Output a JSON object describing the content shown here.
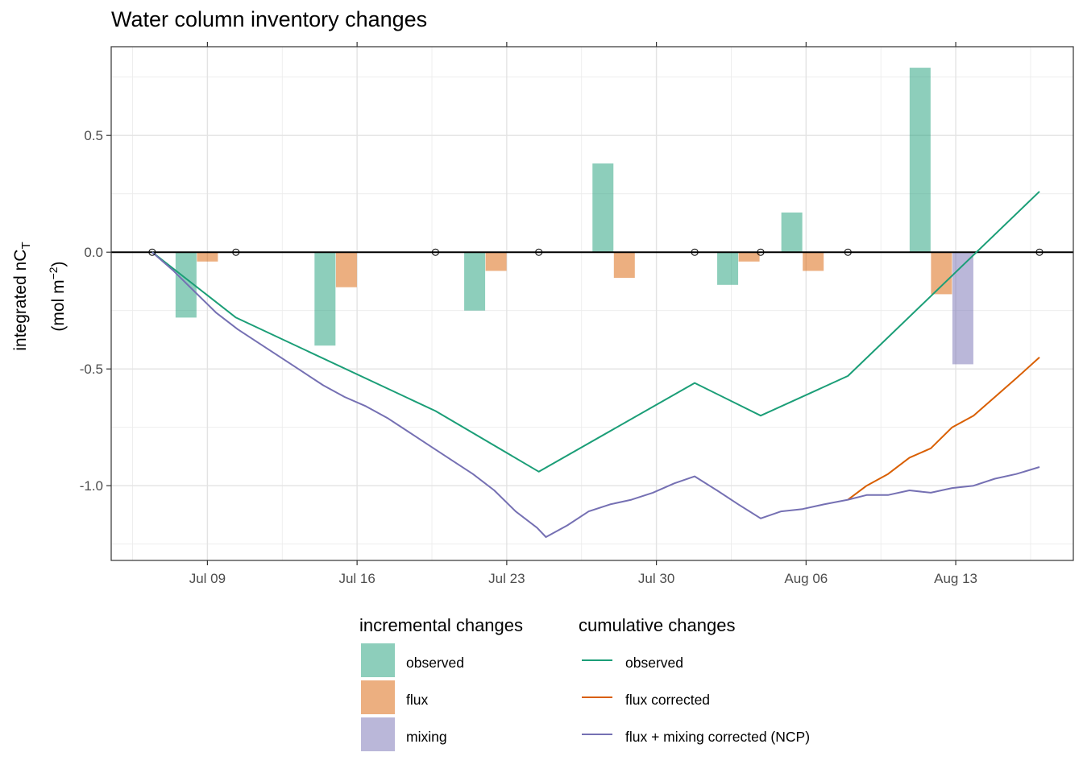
{
  "chart_data": {
    "type": "bar+line",
    "title": "Water column inventory changes",
    "ylabel": {
      "line1": "integrated nC",
      "line1_sub": "T",
      "line2_pre": "(mol m",
      "line2_sup": "−2",
      "line2_post": ")"
    },
    "xlabel": "",
    "x_axis": {
      "type": "date",
      "year": 2000,
      "ticks": [
        {
          "date": "07-09",
          "label": "Jul 09"
        },
        {
          "date": "07-16",
          "label": "Jul 16"
        },
        {
          "date": "07-23",
          "label": "Jul 23"
        },
        {
          "date": "07-30",
          "label": "Jul 30"
        },
        {
          "date": "08-06",
          "label": "Aug 06"
        },
        {
          "date": "08-13",
          "label": "Aug 13"
        }
      ],
      "xlim": [
        "07-04 12:00",
        "08-18 12:00"
      ]
    },
    "y_axis": {
      "ticks": [
        {
          "value": 0.5,
          "label": "0.5"
        },
        {
          "value": 0.0,
          "label": "0.0"
        },
        {
          "value": -0.5,
          "label": "-0.5"
        },
        {
          "value": -1.0,
          "label": "-1.0"
        }
      ],
      "ylim": [
        -1.32,
        0.88
      ]
    },
    "grid": true,
    "zero_line": true,
    "profile_dates": [
      "07-06 10:00",
      "07-10 08:00",
      "07-19 16:00",
      "07-24 12:00",
      "07-31 19:00",
      "08-03 21:00",
      "08-07 23:00",
      "08-16 22:00"
    ],
    "incremental_changes": {
      "legend_title": "incremental changes",
      "series": [
        {
          "key": "observed",
          "name": "observed",
          "color": "#1b9e77",
          "bars": [
            {
              "date": "07-08",
              "value": -0.28
            },
            {
              "date": "07-14 12:00",
              "value": -0.4
            },
            {
              "date": "07-21 12:00",
              "value": -0.25
            },
            {
              "date": "07-27 12:00",
              "value": 0.38
            },
            {
              "date": "08-02 08:00",
              "value": -0.14
            },
            {
              "date": "08-05 08:00",
              "value": 0.17
            },
            {
              "date": "08-11 08:00",
              "value": 0.79
            }
          ]
        },
        {
          "key": "flux",
          "name": "flux",
          "color": "#d95f02",
          "bars": [
            {
              "date": "07-09",
              "value": -0.04
            },
            {
              "date": "07-15 12:00",
              "value": -0.15
            },
            {
              "date": "07-22 12:00",
              "value": -0.08
            },
            {
              "date": "07-28 12:00",
              "value": -0.11
            },
            {
              "date": "08-03 08:00",
              "value": -0.04
            },
            {
              "date": "08-06 08:00",
              "value": -0.08
            },
            {
              "date": "08-12 08:00",
              "value": -0.18
            }
          ]
        },
        {
          "key": "mixing",
          "name": "mixing",
          "color": "#7570b3",
          "bars": [
            {
              "date": "08-13 08:00",
              "value": -0.48
            }
          ]
        }
      ]
    },
    "cumulative_changes": {
      "legend_title": "cumulative changes",
      "series": [
        {
          "key": "observed",
          "name": "observed",
          "color": "#1b9e77",
          "points": [
            [
              "07-06 10:00",
              0.0
            ],
            [
              "07-10 08:00",
              -0.28
            ],
            [
              "07-19 16:00",
              -0.68
            ],
            [
              "07-24 12:00",
              -0.94
            ],
            [
              "07-31 19:00",
              -0.56
            ],
            [
              "08-03 21:00",
              -0.7
            ],
            [
              "08-07 23:00",
              -0.53
            ],
            [
              "08-16 22:00",
              0.26
            ]
          ]
        },
        {
          "key": "flux_corrected",
          "name": "flux corrected",
          "color": "#d95f02",
          "points": [
            [
              "08-07 23:00",
              -1.06
            ],
            [
              "08-08 20:00",
              -1.0
            ],
            [
              "08-09 20:00",
              -0.95
            ],
            [
              "08-10 20:00",
              -0.88
            ],
            [
              "08-11 20:00",
              -0.84
            ],
            [
              "08-12 20:00",
              -0.75
            ],
            [
              "08-13 20:00",
              -0.7
            ],
            [
              "08-14 20:00",
              -0.62
            ],
            [
              "08-15 20:00",
              -0.54
            ],
            [
              "08-16 22:00",
              -0.45
            ]
          ]
        },
        {
          "key": "ncp",
          "name": "flux + mixing corrected (NCP)",
          "color": "#7570b3",
          "points": [
            [
              "07-06 10:00",
              0.0
            ],
            [
              "07-07 10:00",
              -0.08
            ],
            [
              "07-08 10:00",
              -0.17
            ],
            [
              "07-09 10:00",
              -0.26
            ],
            [
              "07-10 10:00",
              -0.33
            ],
            [
              "07-11 10:00",
              -0.39
            ],
            [
              "07-12 10:00",
              -0.45
            ],
            [
              "07-13 10:00",
              -0.51
            ],
            [
              "07-14 10:00",
              -0.57
            ],
            [
              "07-15 10:00",
              -0.62
            ],
            [
              "07-16 10:00",
              -0.66
            ],
            [
              "07-17 10:00",
              -0.71
            ],
            [
              "07-18 10:00",
              -0.77
            ],
            [
              "07-19 10:00",
              -0.83
            ],
            [
              "07-20 10:00",
              -0.89
            ],
            [
              "07-21 10:00",
              -0.95
            ],
            [
              "07-22 10:00",
              -1.02
            ],
            [
              "07-23 10:00",
              -1.11
            ],
            [
              "07-24 10:00",
              -1.18
            ],
            [
              "07-24 20:00",
              -1.22
            ],
            [
              "07-25 20:00",
              -1.17
            ],
            [
              "07-26 20:00",
              -1.11
            ],
            [
              "07-27 20:00",
              -1.08
            ],
            [
              "07-28 20:00",
              -1.06
            ],
            [
              "07-29 20:00",
              -1.03
            ],
            [
              "07-30 20:00",
              -0.99
            ],
            [
              "07-31 19:00",
              -0.96
            ],
            [
              "08-01 20:00",
              -1.02
            ],
            [
              "08-02 20:00",
              -1.08
            ],
            [
              "08-03 21:00",
              -1.14
            ],
            [
              "08-04 20:00",
              -1.11
            ],
            [
              "08-05 20:00",
              -1.1
            ],
            [
              "08-06 20:00",
              -1.08
            ],
            [
              "08-07 23:00",
              -1.06
            ],
            [
              "08-08 20:00",
              -1.04
            ],
            [
              "08-09 20:00",
              -1.04
            ],
            [
              "08-10 20:00",
              -1.02
            ],
            [
              "08-11 20:00",
              -1.03
            ],
            [
              "08-12 20:00",
              -1.01
            ],
            [
              "08-13 20:00",
              -1.0
            ],
            [
              "08-14 20:00",
              -0.97
            ],
            [
              "08-15 20:00",
              -0.95
            ],
            [
              "08-16 22:00",
              -0.92
            ]
          ]
        }
      ]
    },
    "legend_position": "bottom"
  }
}
